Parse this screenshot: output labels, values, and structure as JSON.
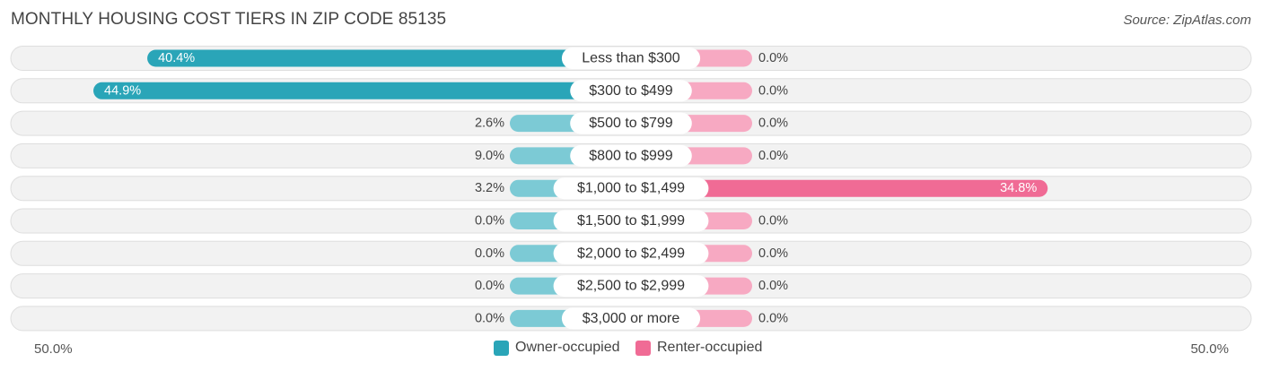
{
  "title": "MONTHLY HOUSING COST TIERS IN ZIP CODE 85135",
  "source": "Source: ZipAtlas.com",
  "colors": {
    "owner_dark": "#2aa5b8",
    "owner_light": "#7ccad5",
    "renter_dark": "#f06b95",
    "renter_light": "#f7a9c2",
    "row_bg": "#f2f2f2",
    "row_border": "#dedede"
  },
  "legend": {
    "owner_label": "Owner-occupied",
    "renter_label": "Renter-occupied"
  },
  "axis": {
    "min_label": "50.0%",
    "max_label": "50.0%"
  },
  "chart_data": {
    "type": "bar",
    "orientation": "horizontal-diverging",
    "categories": [
      "Less than $300",
      "$300 to $499",
      "$500 to $799",
      "$800 to $999",
      "$1,000 to $1,499",
      "$1,500 to $1,999",
      "$2,000 to $2,499",
      "$2,500 to $2,999",
      "$3,000 or more"
    ],
    "series": [
      {
        "name": "Owner-occupied",
        "values": [
          40.4,
          44.9,
          2.6,
          9.0,
          3.2,
          0.0,
          0.0,
          0.0,
          0.0
        ],
        "labels": [
          "40.4%",
          "44.9%",
          "2.6%",
          "9.0%",
          "3.2%",
          "0.0%",
          "0.0%",
          "0.0%",
          "0.0%"
        ]
      },
      {
        "name": "Renter-occupied",
        "values": [
          0.0,
          0.0,
          0.0,
          0.0,
          34.8,
          0.0,
          0.0,
          0.0,
          0.0
        ],
        "labels": [
          "0.0%",
          "0.0%",
          "0.0%",
          "0.0%",
          "34.8%",
          "0.0%",
          "0.0%",
          "0.0%",
          "0.0%"
        ]
      }
    ],
    "xlim": [
      -50,
      50
    ],
    "legend_position": "bottom-center"
  }
}
